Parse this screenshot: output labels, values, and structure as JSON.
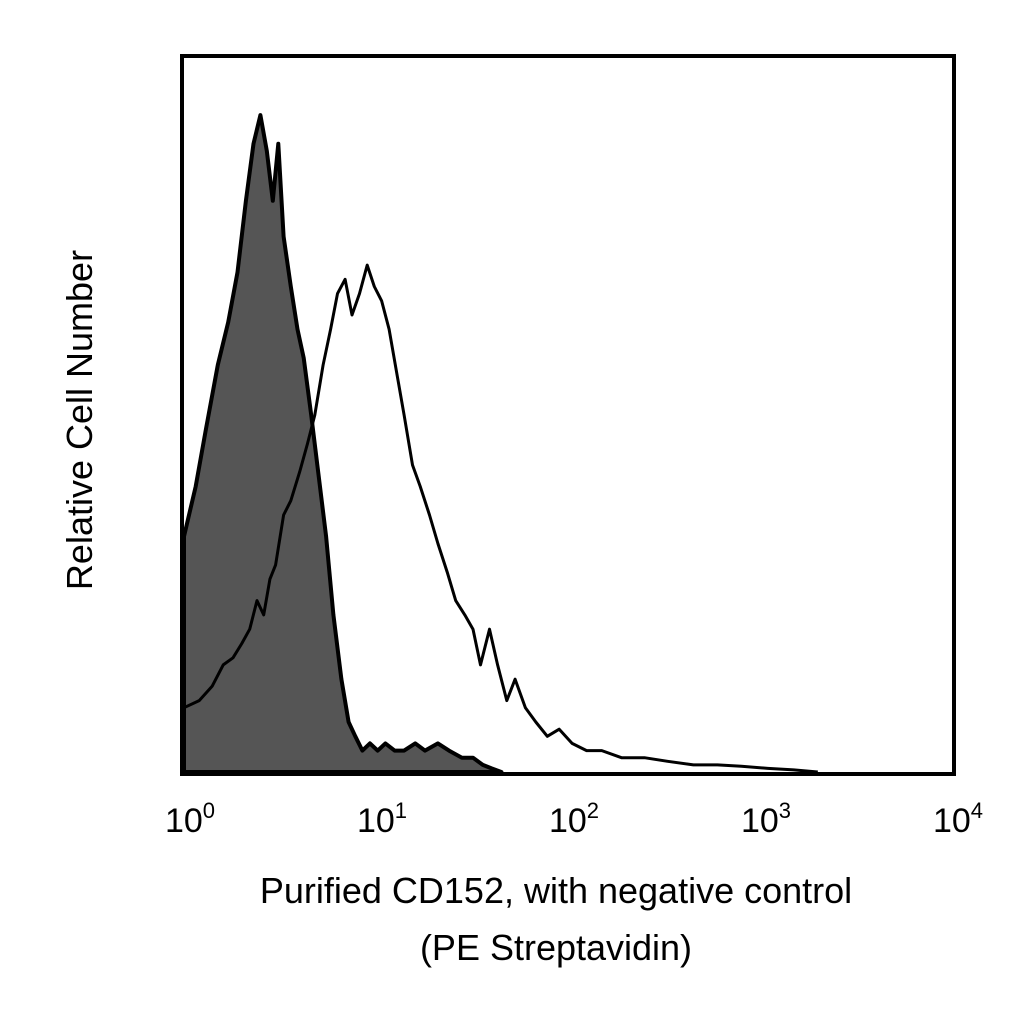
{
  "chart_data": {
    "type": "area",
    "xscale": "log",
    "xlim": [
      1,
      10000
    ],
    "ylim": [
      0,
      1
    ],
    "grid": false,
    "legend": "none",
    "xlabel": "Purified CD152, with negative control",
    "xlabel_line2": "(PE Streptavidin)",
    "ylabel": "Relative Cell Number",
    "x_ticks": [
      {
        "value": 1,
        "base": "10",
        "exp": "0"
      },
      {
        "value": 10,
        "base": "10",
        "exp": "1"
      },
      {
        "value": 100,
        "base": "10",
        "exp": "2"
      },
      {
        "value": 1000,
        "base": "10",
        "exp": "3"
      },
      {
        "value": 10000,
        "base": "10",
        "exp": "4"
      }
    ],
    "series": [
      {
        "role": "negative-control",
        "style": "filled",
        "fill": "#555555",
        "stroke": "#000000",
        "x": [
          1.0,
          1.15,
          1.3,
          1.5,
          1.7,
          1.9,
          2.1,
          2.3,
          2.5,
          2.7,
          2.9,
          3.1,
          3.3,
          3.6,
          3.9,
          4.2,
          4.6,
          5.0,
          5.5,
          6.0,
          6.6,
          7.2,
          7.8,
          8.5,
          9.3,
          10.2,
          11.2,
          12.5,
          14.0,
          16.0,
          18.0,
          21.0,
          24.0,
          28.0,
          32.0,
          36.0,
          40.0,
          45.0
        ],
        "y": [
          0.33,
          0.4,
          0.48,
          0.57,
          0.63,
          0.7,
          0.8,
          0.88,
          0.92,
          0.87,
          0.8,
          0.88,
          0.75,
          0.68,
          0.62,
          0.58,
          0.5,
          0.42,
          0.33,
          0.22,
          0.13,
          0.07,
          0.05,
          0.03,
          0.04,
          0.03,
          0.04,
          0.03,
          0.03,
          0.04,
          0.03,
          0.04,
          0.03,
          0.02,
          0.02,
          0.01,
          0.005,
          0.0
        ]
      },
      {
        "role": "purified-cd152",
        "style": "outline",
        "fill": "none",
        "stroke": "#000000",
        "x": [
          1.0,
          1.2,
          1.4,
          1.6,
          1.8,
          2.0,
          2.2,
          2.4,
          2.6,
          2.8,
          3.0,
          3.3,
          3.6,
          4.0,
          4.4,
          4.8,
          5.3,
          5.8,
          6.3,
          6.9,
          7.5,
          8.2,
          9.0,
          9.8,
          10.7,
          11.7,
          12.8,
          14.0,
          15.5,
          17.0,
          19.0,
          21.0,
          23.5,
          26.0,
          29.0,
          32.0,
          35.0,
          39.0,
          43.0,
          48.0,
          53.0,
          60.0,
          68.0,
          78.0,
          90.0,
          105.0,
          125.0,
          150.0,
          190.0,
          250.0,
          330.0,
          450.0,
          600.0,
          800.0,
          1100.0,
          1500.0,
          2000.0
        ],
        "y": [
          0.09,
          0.1,
          0.12,
          0.15,
          0.16,
          0.18,
          0.2,
          0.24,
          0.22,
          0.27,
          0.29,
          0.36,
          0.38,
          0.42,
          0.46,
          0.5,
          0.57,
          0.62,
          0.67,
          0.69,
          0.64,
          0.67,
          0.71,
          0.68,
          0.66,
          0.62,
          0.56,
          0.5,
          0.43,
          0.4,
          0.36,
          0.32,
          0.28,
          0.24,
          0.22,
          0.2,
          0.15,
          0.2,
          0.15,
          0.1,
          0.13,
          0.09,
          0.07,
          0.05,
          0.06,
          0.04,
          0.03,
          0.03,
          0.02,
          0.02,
          0.015,
          0.01,
          0.01,
          0.008,
          0.005,
          0.003,
          0.0
        ]
      }
    ]
  }
}
